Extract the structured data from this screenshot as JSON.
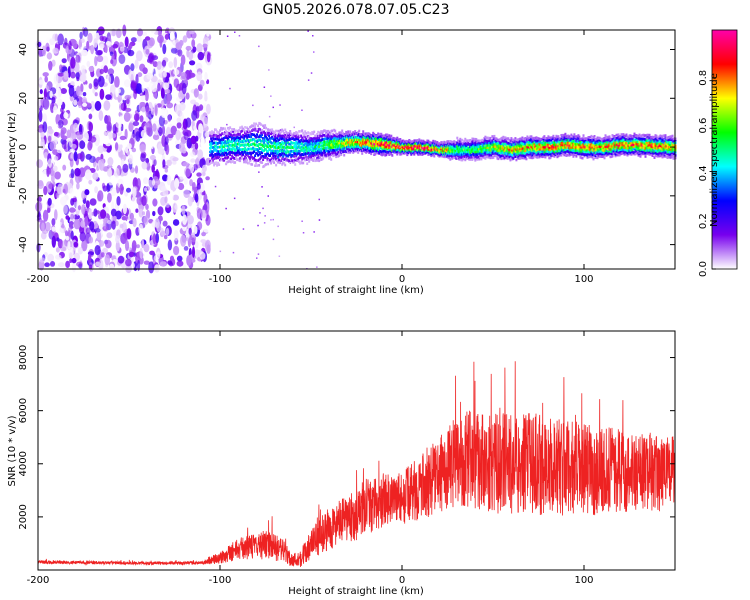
{
  "chart_data": [
    {
      "type": "heatmap",
      "title": "GN05.2026.078.07.05.C23",
      "xlabel": "Height of straight line (km)",
      "ylabel": "Frequency (Hz)",
      "xlim": [
        -200,
        150
      ],
      "ylim": [
        -50,
        48
      ],
      "xticks": [
        -200,
        -100,
        0,
        100
      ],
      "xtick_labels": [
        "-200",
        "-100",
        "0",
        "100"
      ],
      "yticks": [
        -40,
        -20,
        0,
        20,
        40
      ],
      "ytick_labels": [
        "-40",
        "-20",
        "0",
        "20",
        "40"
      ],
      "noise_region_x": [
        -200,
        -106
      ],
      "band_profile": {
        "x": [
          -106,
          -90,
          -80,
          -70,
          -60,
          -50,
          -40,
          -30,
          -20,
          -10,
          0,
          10,
          20,
          30,
          40,
          50,
          60,
          70,
          80,
          90,
          100,
          110,
          120,
          130,
          150
        ],
        "center_freq": [
          0,
          1,
          1,
          0,
          0,
          0,
          1,
          2,
          2,
          1,
          0,
          0,
          -1,
          -1,
          -1,
          0,
          -1,
          0,
          0,
          1,
          0,
          0,
          1,
          1,
          0
        ],
        "half_width": [
          5,
          5,
          6,
          5,
          5,
          4,
          4,
          3,
          3,
          3,
          2,
          2,
          2,
          3,
          3,
          3,
          3,
          3,
          3,
          3,
          3,
          3,
          3,
          3,
          3
        ],
        "peak_amplitude": [
          0.45,
          0.5,
          0.5,
          0.55,
          0.5,
          0.5,
          0.6,
          0.75,
          0.85,
          0.95,
          0.95,
          0.95,
          0.85,
          0.6,
          0.6,
          0.7,
          0.75,
          0.8,
          0.85,
          0.85,
          0.85,
          0.8,
          0.85,
          0.85,
          0.8
        ]
      },
      "colorbar": {
        "label": "Normalized spectral amplitude",
        "range": [
          0,
          1
        ],
        "ticks": [
          0.0,
          0.2,
          0.4,
          0.6,
          0.8
        ],
        "tick_labels": [
          "0.0",
          "0.2",
          "0.4",
          "0.6",
          "0.8"
        ],
        "colors": [
          "#ffffff",
          "#7700ee",
          "#0000ff",
          "#00ffff",
          "#00ff00",
          "#ffff00",
          "#ff0000",
          "#ff00aa"
        ]
      }
    },
    {
      "type": "line",
      "title": "",
      "xlabel": "Height of straight line (km)",
      "ylabel": "SNR (10 * v/v)",
      "xlim": [
        -200,
        150
      ],
      "ylim": [
        0,
        9000
      ],
      "xticks": [
        -200,
        -100,
        0,
        100
      ],
      "xtick_labels": [
        "-200",
        "-100",
        "0",
        "100"
      ],
      "yticks": [
        2000,
        4000,
        6000,
        8000
      ],
      "ytick_labels": [
        "2000",
        "4000",
        "6000",
        "8000"
      ],
      "line_color": "#ee2222",
      "series": [
        {
          "name": "SNR",
          "x": [
            -200,
            -180,
            -160,
            -140,
            -120,
            -110,
            -100,
            -95,
            -90,
            -85,
            -80,
            -75,
            -70,
            -65,
            -60,
            -55,
            -50,
            -45,
            -40,
            -35,
            -30,
            -25,
            -20,
            -15,
            -10,
            -5,
            0,
            5,
            10,
            15,
            20,
            25,
            30,
            35,
            40,
            45,
            50,
            55,
            60,
            65,
            70,
            75,
            80,
            85,
            90,
            95,
            100,
            105,
            110,
            115,
            120,
            125,
            130,
            135,
            140,
            145,
            150
          ],
          "values": [
            300,
            280,
            270,
            260,
            260,
            270,
            450,
            650,
            800,
            850,
            900,
            950,
            850,
            700,
            350,
            500,
            900,
            1300,
            1550,
            1750,
            1900,
            2050,
            2250,
            2450,
            2650,
            2750,
            2700,
            2900,
            3100,
            3300,
            3600,
            3800,
            4000,
            4200,
            4200,
            4100,
            4000,
            4050,
            4000,
            3950,
            4050,
            4000,
            3900,
            3950,
            3800,
            3850,
            3800,
            3750,
            3800,
            3800,
            3700,
            3750,
            3650,
            3700,
            3600,
            3650,
            3700
          ],
          "fluctuation": [
            60,
            60,
            60,
            60,
            60,
            60,
            250,
            350,
            400,
            450,
            500,
            550,
            500,
            450,
            250,
            400,
            600,
            700,
            800,
            850,
            900,
            950,
            950,
            1000,
            1000,
            1000,
            1000,
            1100,
            1200,
            1300,
            1400,
            1600,
            1700,
            1800,
            1900,
            1900,
            1900,
            1900,
            1900,
            1900,
            1900,
            1950,
            1900,
            1850,
            1800,
            1750,
            1700,
            1700,
            1650,
            1600,
            1600,
            1550,
            1500,
            1500,
            1450,
            1400,
            1400
          ]
        }
      ]
    }
  ]
}
